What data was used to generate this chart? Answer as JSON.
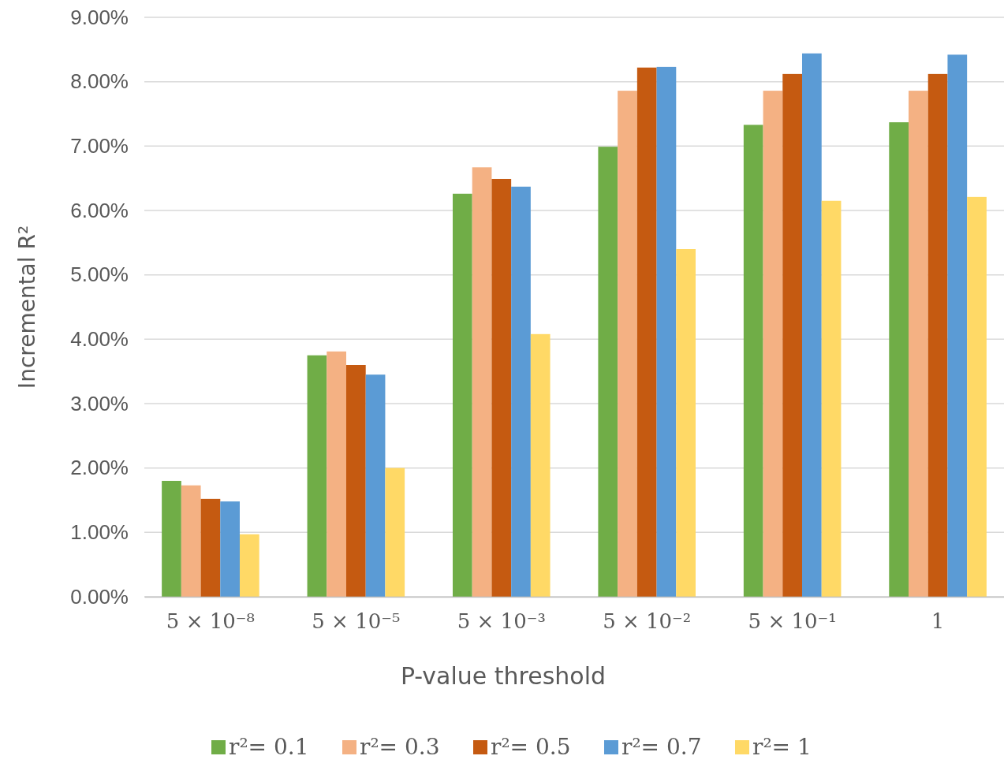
{
  "chart_data": {
    "type": "bar",
    "xlabel": "P-value threshold",
    "ylabel": "Incremental R²",
    "categories": [
      "5 × 10⁻⁸",
      "5 × 10⁻⁵",
      "5 × 10⁻³",
      "5 × 10⁻²",
      "5 × 10⁻¹",
      "1"
    ],
    "series": [
      {
        "name": "r²= 0.1",
        "color": "#70ad47",
        "values": [
          1.8,
          3.75,
          6.26,
          6.99,
          7.33,
          7.37
        ]
      },
      {
        "name": "r²= 0.3",
        "color": "#f4b183",
        "values": [
          1.73,
          3.81,
          6.67,
          7.86,
          7.86,
          7.86
        ]
      },
      {
        "name": "r²= 0.5",
        "color": "#c55a11",
        "values": [
          1.52,
          3.6,
          6.49,
          8.22,
          8.12,
          8.12
        ]
      },
      {
        "name": "r²= 0.7",
        "color": "#5b9bd5",
        "values": [
          1.48,
          3.45,
          6.37,
          8.23,
          8.44,
          8.42
        ]
      },
      {
        "name": "r²= 1",
        "color": "#ffd966",
        "values": [
          0.97,
          2.0,
          4.08,
          5.4,
          6.15,
          6.21
        ]
      }
    ],
    "ylim": [
      0,
      9
    ],
    "yticks": [
      {
        "value": 0,
        "label": "0.00%"
      },
      {
        "value": 1,
        "label": "1.00%"
      },
      {
        "value": 2,
        "label": "2.00%"
      },
      {
        "value": 3,
        "label": "3.00%"
      },
      {
        "value": 4,
        "label": "4.00%"
      },
      {
        "value": 5,
        "label": "5.00%"
      },
      {
        "value": 6,
        "label": "6.00%"
      },
      {
        "value": 7,
        "label": "7.00%"
      },
      {
        "value": 8,
        "label": "8.00%"
      },
      {
        "value": 9,
        "label": "9.00%"
      }
    ],
    "grid": "y",
    "legend": "bottom"
  }
}
